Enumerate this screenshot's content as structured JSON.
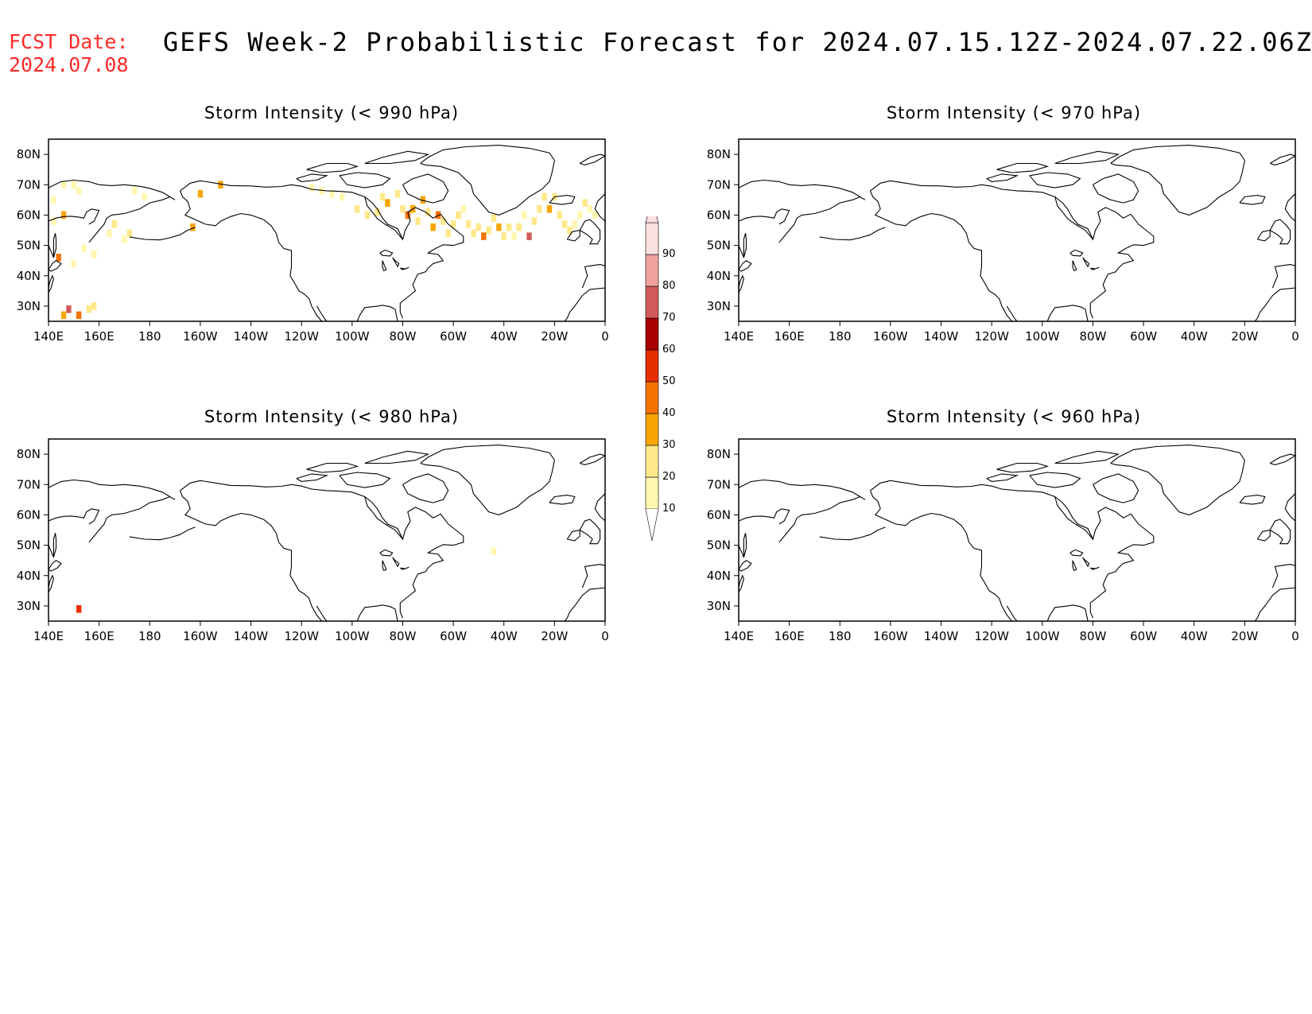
{
  "header": {
    "fcst_label": "FCST Date:",
    "fcst_date": "2024.07.08",
    "title": "GEFS Week-2 Probabilistic Forecast for 2024.07.15.12Z-2024.07.22.06Z"
  },
  "axes": {
    "lon_ticks": [
      "140E",
      "160E",
      "180",
      "160W",
      "140W",
      "120W",
      "100W",
      "80W",
      "60W",
      "40W",
      "20W",
      "0"
    ],
    "lat_ticks": [
      "80N",
      "70N",
      "60N",
      "50N",
      "40N",
      "30N"
    ],
    "lon_range_east": [
      140,
      360
    ],
    "lat_range": [
      25,
      85
    ]
  },
  "panels": [
    {
      "id": "p990",
      "title": "Storm Intensity (< 990 hPa)"
    },
    {
      "id": "p970",
      "title": "Storm Intensity (< 970 hPa)"
    },
    {
      "id": "p980",
      "title": "Storm Intensity (< 980 hPa)"
    },
    {
      "id": "p960",
      "title": "Storm Intensity (< 960 hPa)"
    }
  ],
  "colorbar": {
    "levels": [
      "10",
      "20",
      "30",
      "40",
      "50",
      "60",
      "70",
      "80",
      "90"
    ],
    "colors": [
      "#fff7b0",
      "#ffe88a",
      "#f7a500",
      "#f57200",
      "#e62d00",
      "#a80000",
      "#d25a5a",
      "#f2a0a0",
      "#fbe0e0"
    ]
  },
  "chart_data": {
    "type": "heatmap",
    "units": "probability (%)",
    "cells": {
      "p990": [
        [
          142,
          65,
          10
        ],
        [
          146,
          70,
          10
        ],
        [
          150,
          70,
          10
        ],
        [
          152,
          68,
          10
        ],
        [
          146,
          60,
          30
        ],
        [
          142,
          58,
          10
        ],
        [
          144,
          46,
          40
        ],
        [
          150,
          44,
          10
        ],
        [
          154,
          49,
          10
        ],
        [
          158,
          47,
          10
        ],
        [
          166,
          57,
          20
        ],
        [
          170,
          52,
          10
        ],
        [
          174,
          68,
          10
        ],
        [
          178,
          66,
          10
        ],
        [
          200,
          67,
          30
        ],
        [
          208,
          70,
          30
        ],
        [
          164,
          54,
          10
        ],
        [
          172,
          54,
          20
        ],
        [
          197,
          56,
          30
        ],
        [
          244,
          69,
          10
        ],
        [
          248,
          68,
          10
        ],
        [
          252,
          67,
          10
        ],
        [
          256,
          66,
          10
        ],
        [
          262,
          62,
          20
        ],
        [
          266,
          60,
          20
        ],
        [
          270,
          61,
          20
        ],
        [
          272,
          66,
          20
        ],
        [
          274,
          64,
          30
        ],
        [
          278,
          67,
          20
        ],
        [
          280,
          62,
          20
        ],
        [
          282,
          60,
          40
        ],
        [
          284,
          62,
          30
        ],
        [
          286,
          58,
          20
        ],
        [
          288,
          65,
          30
        ],
        [
          290,
          61,
          20
        ],
        [
          292,
          56,
          30
        ],
        [
          294,
          60,
          40
        ],
        [
          296,
          58,
          20
        ],
        [
          298,
          54,
          20
        ],
        [
          300,
          57,
          20
        ],
        [
          302,
          60,
          20
        ],
        [
          304,
          62,
          10
        ],
        [
          306,
          57,
          20
        ],
        [
          308,
          54,
          20
        ],
        [
          310,
          56,
          20
        ],
        [
          312,
          53,
          40
        ],
        [
          314,
          55,
          20
        ],
        [
          316,
          59,
          20
        ],
        [
          318,
          56,
          30
        ],
        [
          320,
          53,
          20
        ],
        [
          322,
          56,
          20
        ],
        [
          324,
          53,
          10
        ],
        [
          326,
          56,
          20
        ],
        [
          328,
          60,
          10
        ],
        [
          330,
          53,
          70
        ],
        [
          332,
          58,
          20
        ],
        [
          334,
          62,
          20
        ],
        [
          336,
          66,
          20
        ],
        [
          338,
          62,
          30
        ],
        [
          340,
          66,
          20
        ],
        [
          342,
          60,
          20
        ],
        [
          344,
          57,
          20
        ],
        [
          346,
          55,
          20
        ],
        [
          348,
          57,
          10
        ],
        [
          350,
          60,
          10
        ],
        [
          352,
          64,
          20
        ],
        [
          354,
          62,
          10
        ],
        [
          356,
          60,
          10
        ],
        [
          148,
          29,
          70
        ],
        [
          146,
          27,
          30
        ],
        [
          152,
          27,
          40
        ],
        [
          156,
          29,
          20
        ],
        [
          158,
          30,
          20
        ]
      ],
      "p980": [
        [
          152,
          29,
          50
        ],
        [
          316,
          48,
          10
        ]
      ],
      "p970": [],
      "p960": []
    }
  }
}
